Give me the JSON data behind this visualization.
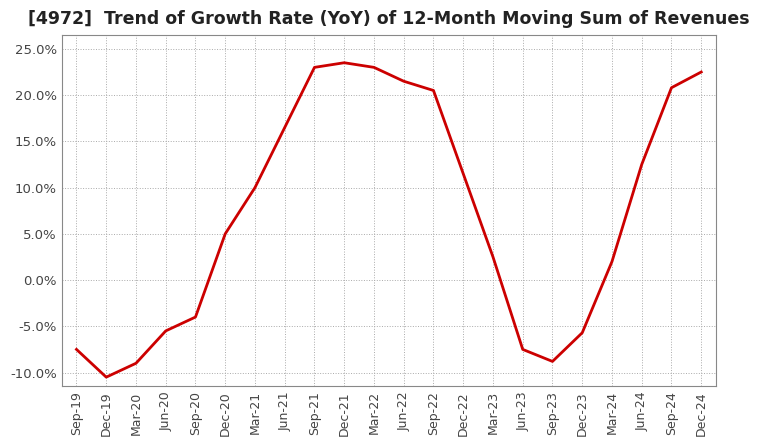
{
  "title": "[4972]  Trend of Growth Rate (YoY) of 12-Month Moving Sum of Revenues",
  "title_fontsize": 12.5,
  "line_color": "#cc0000",
  "background_color": "#ffffff",
  "grid_color": "#aaaaaa",
  "ylim": [
    -0.115,
    0.265
  ],
  "yticks": [
    -0.1,
    -0.05,
    0.0,
    0.05,
    0.1,
    0.15,
    0.2,
    0.25
  ],
  "ytick_labels": [
    "-10.0%",
    "-5.0%",
    "0.0%",
    "5.0%",
    "10.0%",
    "15.0%",
    "20.0%",
    "25.0%"
  ],
  "x_labels": [
    "Sep-19",
    "Dec-19",
    "Mar-20",
    "Jun-20",
    "Sep-20",
    "Dec-20",
    "Mar-21",
    "Jun-21",
    "Sep-21",
    "Dec-21",
    "Mar-22",
    "Jun-22",
    "Sep-22",
    "Dec-22",
    "Mar-23",
    "Jun-23",
    "Sep-23",
    "Dec-23",
    "Mar-24",
    "Jun-24",
    "Sep-24",
    "Dec-24"
  ],
  "data": [
    [
      "Sep-19",
      -0.075
    ],
    [
      "Dec-19",
      -0.105
    ],
    [
      "Mar-20",
      -0.09
    ],
    [
      "Jun-20",
      -0.055
    ],
    [
      "Sep-20",
      -0.04
    ],
    [
      "Dec-20",
      0.05
    ],
    [
      "Mar-21",
      0.1
    ],
    [
      "Jun-21",
      0.165
    ],
    [
      "Sep-21",
      0.23
    ],
    [
      "Dec-21",
      0.235
    ],
    [
      "Mar-22",
      0.23
    ],
    [
      "Jun-22",
      0.215
    ],
    [
      "Sep-22",
      0.205
    ],
    [
      "Dec-22",
      0.115
    ],
    [
      "Mar-23",
      0.025
    ],
    [
      "Jun-23",
      -0.075
    ],
    [
      "Sep-23",
      -0.088
    ],
    [
      "Dec-23",
      -0.057
    ],
    [
      "Mar-24",
      0.02
    ],
    [
      "Jun-24",
      0.125
    ],
    [
      "Sep-24",
      0.208
    ],
    [
      "Dec-24",
      0.225
    ]
  ]
}
